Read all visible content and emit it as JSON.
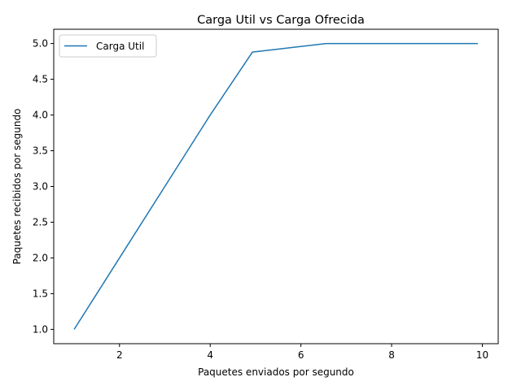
{
  "chart_data": {
    "type": "line",
    "title": "Carga Util vs Carga Ofrecida",
    "xlabel": "Paquetes enviados por segundo",
    "ylabel": "Paquetes recibidos por segundo",
    "xlim": [
      0.55,
      10.35
    ],
    "ylim": [
      0.8,
      5.2
    ],
    "xticks": [
      2,
      4,
      6,
      8,
      10
    ],
    "xtick_labels": [
      "2",
      "4",
      "6",
      "8",
      "10"
    ],
    "yticks": [
      1.0,
      1.5,
      2.0,
      2.5,
      3.0,
      3.5,
      4.0,
      4.5,
      5.0
    ],
    "ytick_labels": [
      "1.0",
      "1.5",
      "2.0",
      "2.5",
      "3.0",
      "3.5",
      "4.0",
      "4.5",
      "5.0"
    ],
    "grid": false,
    "legend": "upper-left",
    "series": [
      {
        "name": "Carga Util",
        "color": "#1f77b4",
        "x": [
          1.0,
          1.5,
          2.0,
          3.0,
          4.0,
          4.93,
          6.55,
          7.0,
          8.0,
          9.0,
          9.9
        ],
        "y": [
          1.0,
          1.5,
          2.0,
          3.0,
          4.0,
          4.88,
          5.0,
          5.0,
          5.0,
          5.0,
          5.0
        ]
      }
    ]
  }
}
